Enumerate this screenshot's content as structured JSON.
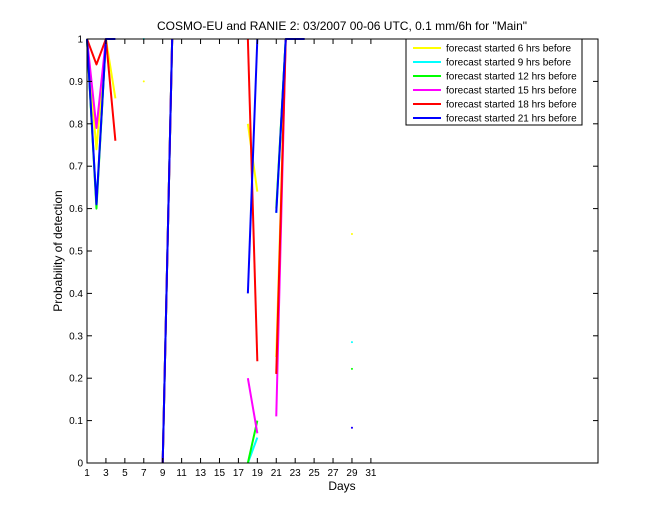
{
  "chart_data": {
    "type": "line",
    "title": "COSMO-EU and RANIE 2: 03/2007 00-06 UTC, 0.1 mm/6h for \"Main\"",
    "xlabel": "Days",
    "ylabel": "Probability of detection",
    "xlim": [
      1,
      55
    ],
    "ylim": [
      0,
      1
    ],
    "x_ticks": [
      1,
      3,
      5,
      7,
      9,
      11,
      13,
      15,
      17,
      19,
      21,
      23,
      25,
      27,
      29,
      31
    ],
    "y_ticks": [
      0,
      0.1,
      0.2,
      0.3,
      0.4,
      0.5,
      0.6,
      0.7,
      0.8,
      0.9,
      1
    ],
    "grid": false,
    "legend_position": "top-right",
    "series": [
      {
        "name": "forecast started 6 hrs before",
        "color": "#ffff00",
        "segments": [
          [
            [
              1,
              1
            ],
            [
              2,
              0.74
            ],
            [
              3,
              1
            ],
            [
              4,
              0.86
            ]
          ],
          [
            [
              7,
              0.9
            ]
          ],
          [
            [
              9,
              0
            ],
            [
              10,
              1
            ]
          ],
          [
            [
              18,
              0.8
            ],
            [
              19,
              0.64
            ]
          ],
          [
            [
              21,
              0.25
            ],
            [
              22,
              1
            ],
            [
              24,
              1
            ]
          ],
          [
            [
              29,
              0.54
            ]
          ]
        ]
      },
      {
        "name": "forecast started 9 hrs before",
        "color": "#00ffff",
        "segments": [
          [
            [
              1,
              1
            ],
            [
              2,
              0.61
            ],
            [
              3,
              1
            ]
          ],
          [
            [
              7,
              1
            ]
          ],
          [
            [
              9,
              0
            ],
            [
              10,
              1
            ]
          ],
          [
            [
              18,
              0
            ],
            [
              19,
              0.06
            ]
          ],
          [
            [
              21,
              0.59
            ],
            [
              22,
              1
            ]
          ],
          [
            [
              29,
              0.285
            ]
          ]
        ]
      },
      {
        "name": "forecast started 12 hrs before",
        "color": "#00ff00",
        "segments": [
          [
            [
              1,
              1
            ],
            [
              2,
              0.6
            ],
            [
              3,
              1
            ]
          ],
          [
            [
              9,
              0
            ],
            [
              10,
              1
            ]
          ],
          [
            [
              18,
              0
            ],
            [
              19,
              0.1
            ]
          ],
          [
            [
              21,
              0.6
            ],
            [
              22,
              1
            ]
          ],
          [
            [
              29,
              0.222
            ]
          ]
        ]
      },
      {
        "name": "forecast started 15 hrs before",
        "color": "#ff00ff",
        "segments": [
          [
            [
              1,
              1
            ],
            [
              2,
              0.79
            ],
            [
              3,
              1
            ]
          ],
          [
            [
              9,
              0
            ],
            [
              10,
              1
            ]
          ],
          [
            [
              18,
              0.2
            ],
            [
              19,
              0.07
            ]
          ],
          [
            [
              21,
              0.11
            ],
            [
              22,
              1
            ]
          ],
          [
            [
              29,
              0.083
            ]
          ]
        ]
      },
      {
        "name": "forecast started 18 hrs before",
        "color": "#ff0000",
        "segments": [
          [
            [
              1,
              1
            ],
            [
              2,
              0.94
            ],
            [
              3,
              1
            ],
            [
              4,
              0.76
            ]
          ],
          [
            [
              9,
              0
            ],
            [
              10,
              1
            ]
          ],
          [
            [
              18,
              1
            ],
            [
              19,
              0.24
            ]
          ],
          [
            [
              21,
              0.21
            ],
            [
              22,
              1
            ]
          ]
        ]
      },
      {
        "name": "forecast started 21 hrs before",
        "color": "#0000ff",
        "segments": [
          [
            [
              1,
              1
            ],
            [
              2,
              0.61
            ],
            [
              3,
              1
            ],
            [
              4,
              1
            ]
          ],
          [
            [
              9,
              0
            ],
            [
              10,
              1
            ]
          ],
          [
            [
              18,
              0.4
            ],
            [
              19,
              1
            ]
          ],
          [
            [
              21,
              0.59
            ],
            [
              22,
              1
            ],
            [
              24,
              1
            ]
          ],
          [
            [
              29,
              0.083
            ]
          ]
        ]
      }
    ]
  }
}
